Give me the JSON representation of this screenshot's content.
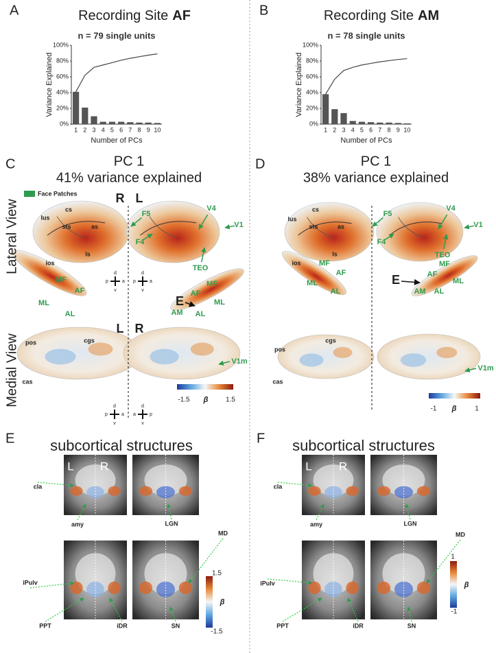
{
  "chart_data": [
    {
      "type": "bar",
      "title": "Recording Site",
      "title_bold": "AF",
      "subtitle": "n = 79 single units",
      "ylabel": "Variance Explained",
      "xlabel": "Number of PCs",
      "categories": [
        1,
        2,
        3,
        4,
        5,
        6,
        7,
        8,
        9,
        10
      ],
      "series": [
        {
          "type": "bar",
          "color": "#555555",
          "values": [
            41,
            21,
            10,
            3,
            3,
            3,
            2.5,
            2,
            2,
            1.5
          ]
        },
        {
          "type": "line",
          "color": "#444444",
          "values": [
            41,
            62,
            72,
            75,
            78,
            81,
            83.5,
            85.5,
            87.5,
            89
          ]
        }
      ],
      "ylim": [
        0,
        100
      ],
      "yticks": [
        {
          "value": 0,
          "label": "0%"
        },
        {
          "value": 20,
          "label": "20%"
        },
        {
          "value": 40,
          "label": "40%"
        },
        {
          "value": 60,
          "label": "60%"
        },
        {
          "value": 80,
          "label": "80%"
        },
        {
          "value": 100,
          "label": "100%"
        }
      ]
    },
    {
      "type": "bar",
      "title": "Recording Site",
      "title_bold": "AM",
      "subtitle": "n = 78 single units",
      "ylabel": "Variance Explained",
      "xlabel": "Number of PCs",
      "categories": [
        1,
        2,
        3,
        4,
        5,
        6,
        7,
        8,
        9,
        10
      ],
      "series": [
        {
          "type": "bar",
          "color": "#555555",
          "values": [
            38,
            19,
            14,
            4,
            3,
            2.5,
            2,
            2,
            1.5,
            1
          ]
        },
        {
          "type": "line",
          "color": "#444444",
          "values": [
            38,
            57,
            68,
            72,
            75,
            77,
            79,
            80.5,
            82,
            83
          ]
        }
      ],
      "ylim": [
        0,
        100
      ],
      "yticks": [
        {
          "value": 0,
          "label": "0%"
        },
        {
          "value": 20,
          "label": "20%"
        },
        {
          "value": 40,
          "label": "40%"
        },
        {
          "value": 60,
          "label": "60%"
        },
        {
          "value": 80,
          "label": "80%"
        },
        {
          "value": 100,
          "label": "100%"
        }
      ]
    }
  ],
  "panel_labels": [
    "A",
    "B",
    "C",
    "D",
    "E",
    "F"
  ],
  "legend": "Face Patches",
  "views": [
    "Lateral View",
    "Medial View"
  ],
  "compass": [
    "d",
    "v",
    "p",
    "a"
  ],
  "cortex": [
    {
      "title": "PC 1",
      "subtitle": "41% variance explained",
      "lateral_hemi": [
        "R",
        "L"
      ],
      "medial_hemi": [
        "L",
        "R"
      ],
      "lateral_labels": [
        "lus",
        "cs",
        "sts",
        "as",
        "ios",
        "ls"
      ],
      "lateral_patches": [
        "F5",
        "V4",
        "F4",
        "V1",
        "TEO",
        "MF",
        "AF",
        "ML",
        "AL",
        "AF",
        "MF",
        "ML",
        "AL",
        "AM"
      ],
      "marker": "E",
      "medial_labels": [
        "pos",
        "cgs",
        "cas"
      ],
      "medial_patches": [
        "V1m"
      ],
      "colorbar": {
        "min": -1.5,
        "symbol": "β",
        "max": 1.5
      }
    },
    {
      "title": "PC 1",
      "subtitle": "38% variance explained",
      "lateral_labels": [
        "lus",
        "cs",
        "sts",
        "as",
        "ios",
        "ls"
      ],
      "lateral_patches": [
        "F5",
        "V4",
        "F4",
        "V1",
        "TEO",
        "MF",
        "AF",
        "ML",
        "AL",
        "AF",
        "MF",
        "ML",
        "AL",
        "AM"
      ],
      "marker": "E",
      "medial_labels": [
        "pos",
        "cgs",
        "cas"
      ],
      "medial_patches": [
        "V1m"
      ],
      "colorbar": {
        "min": -1,
        "symbol": "β",
        "max": 1
      }
    }
  ],
  "subcortical": [
    {
      "title": "subcortical structures",
      "hemi": [
        "L",
        "R"
      ],
      "labels": [
        "cla",
        "amy",
        "LGN",
        "MD",
        "iPulv",
        "PPT",
        "iDR",
        "SN"
      ],
      "colorbar": {
        "max": 1.5,
        "symbol": "β",
        "min": -1.5
      }
    },
    {
      "title": "subcortical structures",
      "hemi": [
        "L",
        "R"
      ],
      "labels": [
        "cla",
        "amy",
        "LGN",
        "MD",
        "iPulv",
        "PPT",
        "iDR",
        "SN"
      ],
      "colorbar": {
        "max": 1,
        "symbol": "β",
        "min": -1
      }
    }
  ]
}
